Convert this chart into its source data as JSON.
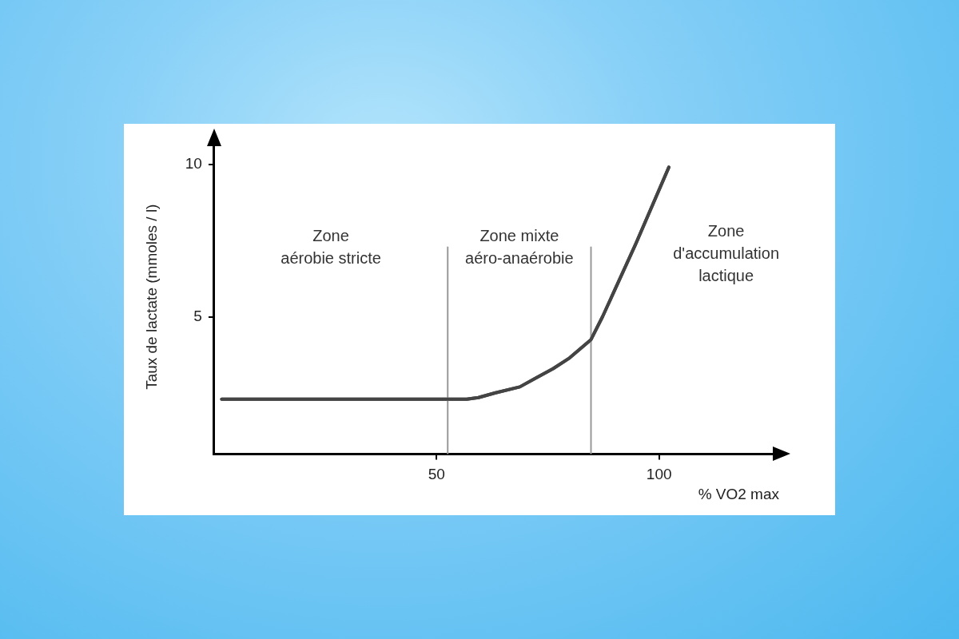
{
  "chart_data": {
    "type": "line",
    "xlabel": "% VO2 max",
    "ylabel": "Taux de lactate (mmoles / l)",
    "x": [
      1.7,
      20,
      40,
      52.5,
      56.8,
      59.4,
      63.1,
      68.7,
      72.4,
      76.2,
      79.9,
      84.7,
      87.3,
      94.8,
      102.2
    ],
    "series": [
      {
        "color": "#444444",
        "values": [
          2.3,
          2.3,
          2.3,
          2.3,
          2.3,
          2.35,
          2.5,
          2.7,
          3.0,
          3.3,
          3.65,
          4.25,
          5.0,
          7.4,
          9.9
        ]
      }
    ],
    "xlim": [
      0,
      127
    ],
    "ylim": [
      0.5,
      10.8
    ],
    "xticks": [
      50,
      100
    ],
    "yticks": [
      5,
      10
    ],
    "grid": false,
    "legend": false,
    "marker": "none",
    "line_style": "solid",
    "ref_lines": [
      {
        "axis": "x",
        "value": 52.5,
        "color": "#999999"
      },
      {
        "axis": "x",
        "value": 84.7,
        "color": "#999999"
      }
    ],
    "annotations": [
      "Zone\naérobie stricte",
      "Zone mixte\naéro-anaérobie",
      "Zone\nd'accumulation\nlactique"
    ]
  }
}
